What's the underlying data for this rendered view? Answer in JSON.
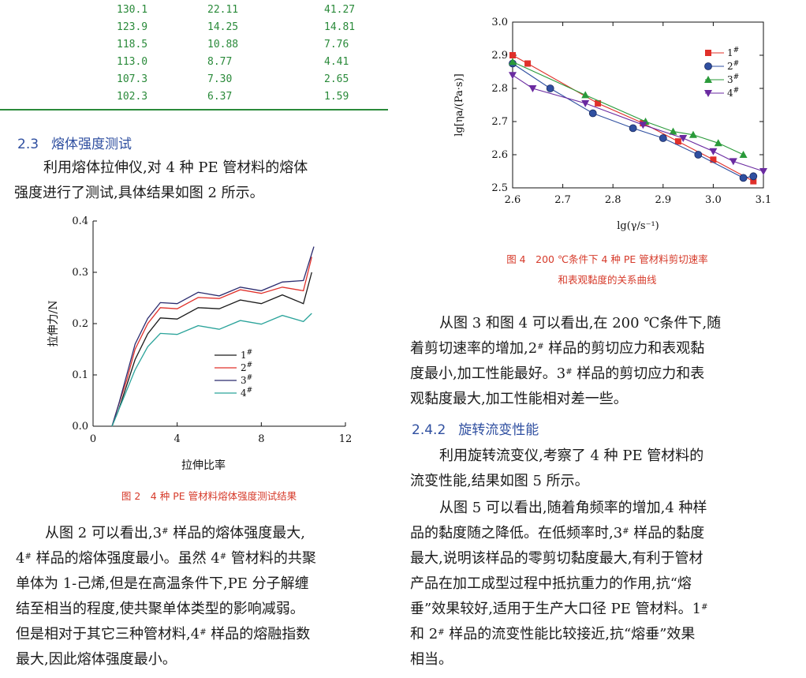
{
  "table_tail": {
    "rows": [
      [
        "130.1",
        "22.11",
        "41.27"
      ],
      [
        "123.9",
        "14.25",
        "14.81"
      ],
      [
        "118.5",
        "10.88",
        "7.76"
      ],
      [
        "113.0",
        "8.77",
        "4.41"
      ],
      [
        "107.3",
        "7.30",
        "2.65"
      ],
      [
        "102.3",
        "6.37",
        "1.59"
      ]
    ]
  },
  "section_2_3": {
    "number": "2.3",
    "title": "熔体强度测试",
    "para_lines": [
      "利用熔体拉伸仪,对 4 种 PE 管材料的熔体",
      "强度进行了测试,具体结果如图 2 所示。"
    ]
  },
  "fig2": {
    "caption": "图 2　4 种 PE 管材料熔体强度测试结果"
  },
  "para_left2_lines": [
    "从图 2 可以看出,3# 样品的熔体强度最大,",
    "4# 样品的熔体强度最小。虽然 4# 管材料的共聚",
    "单体为 1-己烯,但是在高温条件下,PE 分子解缠",
    "结至相当的程度,使共聚单体类型的影响减弱。",
    "但是相对于其它三种管材料,4# 样品的熔融指数",
    "最大,因此熔体强度最小。"
  ],
  "fig4": {
    "caption_line1": "图 4　200 ℃条件下 4 种 PE 管材料剪切速率",
    "caption_line2": "和表观黏度的关系曲线"
  },
  "para_right1_lines": [
    "从图 3 和图 4 可以看出,在 200 ℃条件下,随",
    "着剪切速率的增加,2# 样品的剪切应力和表观黏",
    "度最小,加工性能最好。3# 样品的剪切应力和表",
    "观黏度最大,加工性能相对差一些。"
  ],
  "section_2_4_2": {
    "number": "2.4.2",
    "title": "旋转流变性能"
  },
  "para_right2_lines": [
    "利用旋转流变仪,考察了 4 种 PE 管材料的",
    "流变性能,结果如图 5 所示。"
  ],
  "para_right3_lines": [
    "从图 5 可以看出,随着角频率的增加,4 种样",
    "品的黏度随之降低。在低频率时,3# 样品的黏度",
    "最大,说明该样品的零剪切黏度最大,有利于管材",
    "产品在加工成型过程中抵抗重力的作用,抗“熔",
    "垂”效果较好,适用于生产大口径 PE 管材料。1#",
    "和 2# 样品的流变性能比较接近,抗“熔垂”效果",
    "相当。"
  ],
  "chart_data": [
    {
      "type": "line",
      "title": "",
      "xlabel": "拉伸比率",
      "ylabel": "拉伸力/N",
      "xlim": [
        0,
        12
      ],
      "ylim": [
        0.0,
        0.4
      ],
      "xticks": [
        0,
        4,
        8,
        12
      ],
      "xtick_labels": [
        "0",
        "4",
        "8",
        "12"
      ],
      "yticks": [
        0.0,
        0.1,
        0.2,
        0.3,
        0.4
      ],
      "ytick_labels": [
        "0.0",
        "0.1",
        "0.2",
        "0.3",
        "0.4"
      ],
      "legend_position": "center-right",
      "series": [
        {
          "name": "1#",
          "color": "#1a1a1a",
          "x": [
            0.9,
            1.2,
            1.6,
            2.0,
            2.6,
            3.2,
            4.0,
            5.0,
            6.0,
            7.0,
            8.0,
            9.0,
            10.0,
            10.4
          ],
          "y": [
            0.0,
            0.03,
            0.08,
            0.13,
            0.18,
            0.205,
            0.215,
            0.225,
            0.235,
            0.24,
            0.245,
            0.25,
            0.245,
            0.3
          ]
        },
        {
          "name": "2#",
          "color": "#e0302a",
          "x": [
            0.9,
            1.2,
            1.6,
            2.0,
            2.6,
            3.2,
            4.0,
            5.0,
            6.0,
            7.0,
            8.0,
            9.0,
            10.0,
            10.4
          ],
          "y": [
            0.0,
            0.04,
            0.09,
            0.15,
            0.2,
            0.225,
            0.235,
            0.245,
            0.255,
            0.26,
            0.265,
            0.265,
            0.27,
            0.33
          ]
        },
        {
          "name": "3#",
          "color": "#2b2b6e",
          "x": [
            0.9,
            1.2,
            1.6,
            2.0,
            2.6,
            3.2,
            4.0,
            5.0,
            6.0,
            7.0,
            8.0,
            9.0,
            10.0,
            10.5
          ],
          "y": [
            0.0,
            0.04,
            0.1,
            0.16,
            0.21,
            0.235,
            0.245,
            0.255,
            0.26,
            0.265,
            0.27,
            0.275,
            0.29,
            0.35
          ]
        },
        {
          "name": "4#",
          "color": "#2aa39a",
          "x": [
            0.9,
            1.2,
            1.6,
            2.0,
            2.6,
            3.2,
            4.0,
            5.0,
            6.0,
            7.0,
            8.0,
            9.0,
            10.0,
            10.4
          ],
          "y": [
            0.0,
            0.03,
            0.07,
            0.11,
            0.155,
            0.175,
            0.185,
            0.19,
            0.195,
            0.2,
            0.205,
            0.21,
            0.21,
            0.22
          ]
        }
      ]
    },
    {
      "type": "line",
      "title": "",
      "xlabel": "lg(γ/s⁻¹)",
      "ylabel": "lg[ηa/(Pa·s)]",
      "xlim": [
        2.6,
        3.1
      ],
      "ylim": [
        2.5,
        3.0
      ],
      "xticks": [
        2.6,
        2.7,
        2.8,
        2.9,
        3.0,
        3.1
      ],
      "xtick_labels": [
        "2.6",
        "2.7",
        "2.8",
        "2.9",
        "3.0",
        "3.1"
      ],
      "yticks": [
        2.5,
        2.6,
        2.7,
        2.8,
        2.9,
        3.0
      ],
      "ytick_labels": [
        "2.5",
        "2.6",
        "2.7",
        "2.8",
        "2.9",
        "3.0"
      ],
      "legend_position": "top-right",
      "series": [
        {
          "name": "1#",
          "color": "#e0302a",
          "marker": "square",
          "x": [
            2.6,
            2.63,
            2.77,
            2.86,
            2.93,
            3.0,
            3.08
          ],
          "y": [
            2.9,
            2.875,
            2.755,
            2.695,
            2.64,
            2.585,
            2.52
          ]
        },
        {
          "name": "2#",
          "color": "#2f4fa0",
          "marker": "circle",
          "x": [
            2.6,
            2.675,
            2.76,
            2.84,
            2.9,
            2.97,
            3.06,
            3.08
          ],
          "y": [
            2.875,
            2.8,
            2.725,
            2.68,
            2.65,
            2.6,
            2.53,
            2.535
          ]
        },
        {
          "name": "3#",
          "color": "#2a9a3a",
          "marker": "triangle",
          "x": [
            2.6,
            2.745,
            2.865,
            2.92,
            2.96,
            3.01,
            3.06
          ],
          "y": [
            2.88,
            2.78,
            2.7,
            2.67,
            2.66,
            2.635,
            2.6
          ]
        },
        {
          "name": "4#",
          "color": "#6a2aa0",
          "marker": "triangle-down",
          "x": [
            2.6,
            2.64,
            2.745,
            2.86,
            2.94,
            3.0,
            3.04,
            3.1
          ],
          "y": [
            2.84,
            2.8,
            2.755,
            2.69,
            2.65,
            2.61,
            2.58,
            2.55
          ]
        }
      ]
    }
  ]
}
